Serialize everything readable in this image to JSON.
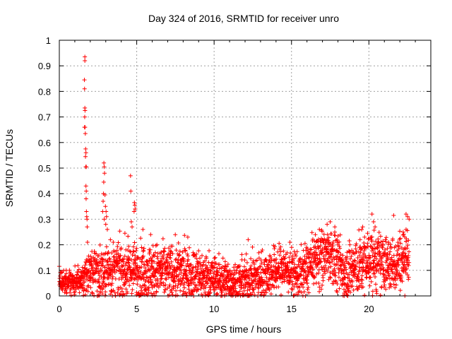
{
  "chart_data": {
    "type": "scatter",
    "title": "Day 324 of 2016, SRMTID for receiver unro",
    "xlabel": "GPS time / hours",
    "ylabel": "SRMTID / TECUs",
    "xlim": [
      0,
      24
    ],
    "ylim": [
      0,
      1
    ],
    "xticks": [
      0,
      5,
      10,
      15,
      20
    ],
    "yticks": [
      0,
      0.1,
      0.2,
      0.3,
      0.4,
      0.5,
      0.6,
      0.7,
      0.8,
      0.9,
      1
    ],
    "xtick_labels": [
      "0",
      "5",
      "10",
      "15",
      "20"
    ],
    "ytick_labels": [
      "0",
      "0.1",
      "0.2",
      "0.3",
      "0.4",
      "0.5",
      "0.6",
      "0.7",
      "0.8",
      "0.9",
      "1"
    ],
    "grid": true,
    "marker": "+",
    "color": "#ff0000",
    "background_trend": [
      {
        "x": 0.0,
        "y": 0.05,
        "spread": 0.03
      },
      {
        "x": 1.0,
        "y": 0.05,
        "spread": 0.03
      },
      {
        "x": 1.4,
        "y": 0.06,
        "spread": 0.04
      },
      {
        "x": 2.0,
        "y": 0.1,
        "spread": 0.06
      },
      {
        "x": 3.0,
        "y": 0.1,
        "spread": 0.07
      },
      {
        "x": 5.0,
        "y": 0.1,
        "spread": 0.07
      },
      {
        "x": 8.0,
        "y": 0.09,
        "spread": 0.07
      },
      {
        "x": 10.0,
        "y": 0.07,
        "spread": 0.06
      },
      {
        "x": 11.5,
        "y": 0.05,
        "spread": 0.05
      },
      {
        "x": 13.0,
        "y": 0.08,
        "spread": 0.06
      },
      {
        "x": 14.5,
        "y": 0.11,
        "spread": 0.06
      },
      {
        "x": 15.5,
        "y": 0.08,
        "spread": 0.06
      },
      {
        "x": 16.5,
        "y": 0.14,
        "spread": 0.07
      },
      {
        "x": 17.5,
        "y": 0.17,
        "spread": 0.07
      },
      {
        "x": 18.5,
        "y": 0.09,
        "spread": 0.08
      },
      {
        "x": 20.0,
        "y": 0.14,
        "spread": 0.08
      },
      {
        "x": 21.5,
        "y": 0.12,
        "spread": 0.07
      },
      {
        "x": 22.6,
        "y": 0.17,
        "spread": 0.08
      }
    ],
    "highlighted_points": [
      {
        "x": 1.65,
        "y": 0.935
      },
      {
        "x": 1.65,
        "y": 0.92
      },
      {
        "x": 1.62,
        "y": 0.845
      },
      {
        "x": 1.63,
        "y": 0.81
      },
      {
        "x": 1.65,
        "y": 0.735
      },
      {
        "x": 1.66,
        "y": 0.725
      },
      {
        "x": 1.64,
        "y": 0.7
      },
      {
        "x": 1.63,
        "y": 0.66
      },
      {
        "x": 1.66,
        "y": 0.66
      },
      {
        "x": 1.68,
        "y": 0.635
      },
      {
        "x": 1.7,
        "y": 0.575
      },
      {
        "x": 1.72,
        "y": 0.56
      },
      {
        "x": 1.69,
        "y": 0.545
      },
      {
        "x": 1.71,
        "y": 0.505
      },
      {
        "x": 1.74,
        "y": 0.505
      },
      {
        "x": 1.72,
        "y": 0.43
      },
      {
        "x": 1.74,
        "y": 0.41
      },
      {
        "x": 1.73,
        "y": 0.38
      },
      {
        "x": 1.75,
        "y": 0.33
      },
      {
        "x": 1.77,
        "y": 0.31
      },
      {
        "x": 1.79,
        "y": 0.3
      },
      {
        "x": 1.8,
        "y": 0.27
      },
      {
        "x": 1.82,
        "y": 0.21
      },
      {
        "x": 2.88,
        "y": 0.52
      },
      {
        "x": 2.9,
        "y": 0.505
      },
      {
        "x": 2.92,
        "y": 0.48
      },
      {
        "x": 2.87,
        "y": 0.445
      },
      {
        "x": 2.85,
        "y": 0.4
      },
      {
        "x": 2.95,
        "y": 0.395
      },
      {
        "x": 2.83,
        "y": 0.37
      },
      {
        "x": 2.98,
        "y": 0.35
      },
      {
        "x": 3.02,
        "y": 0.33
      },
      {
        "x": 2.8,
        "y": 0.33
      },
      {
        "x": 3.05,
        "y": 0.31
      },
      {
        "x": 2.9,
        "y": 0.3
      },
      {
        "x": 3.0,
        "y": 0.28
      },
      {
        "x": 3.1,
        "y": 0.26
      },
      {
        "x": 3.3,
        "y": 0.22
      },
      {
        "x": 4.6,
        "y": 0.47
      },
      {
        "x": 4.62,
        "y": 0.41
      },
      {
        "x": 4.85,
        "y": 0.365
      },
      {
        "x": 4.88,
        "y": 0.355
      },
      {
        "x": 4.9,
        "y": 0.34
      },
      {
        "x": 4.83,
        "y": 0.33
      },
      {
        "x": 4.65,
        "y": 0.29
      },
      {
        "x": 4.7,
        "y": 0.27
      },
      {
        "x": 5.4,
        "y": 0.26
      },
      {
        "x": 5.9,
        "y": 0.24
      },
      {
        "x": 8.3,
        "y": 0.23
      },
      {
        "x": 12.2,
        "y": 0.22
      },
      {
        "x": 16.8,
        "y": 0.26
      },
      {
        "x": 17.3,
        "y": 0.28
      },
      {
        "x": 17.5,
        "y": 0.29
      },
      {
        "x": 17.8,
        "y": 0.27
      },
      {
        "x": 19.6,
        "y": 0.27
      },
      {
        "x": 20.2,
        "y": 0.32
      },
      {
        "x": 20.3,
        "y": 0.29
      },
      {
        "x": 20.4,
        "y": 0.27
      },
      {
        "x": 21.6,
        "y": 0.315
      },
      {
        "x": 22.4,
        "y": 0.32
      },
      {
        "x": 22.5,
        "y": 0.31
      },
      {
        "x": 22.6,
        "y": 0.3
      },
      {
        "x": 22.4,
        "y": 0.26
      },
      {
        "x": 15.9,
        "y": 0.0
      },
      {
        "x": 18.4,
        "y": 0.0
      }
    ]
  }
}
